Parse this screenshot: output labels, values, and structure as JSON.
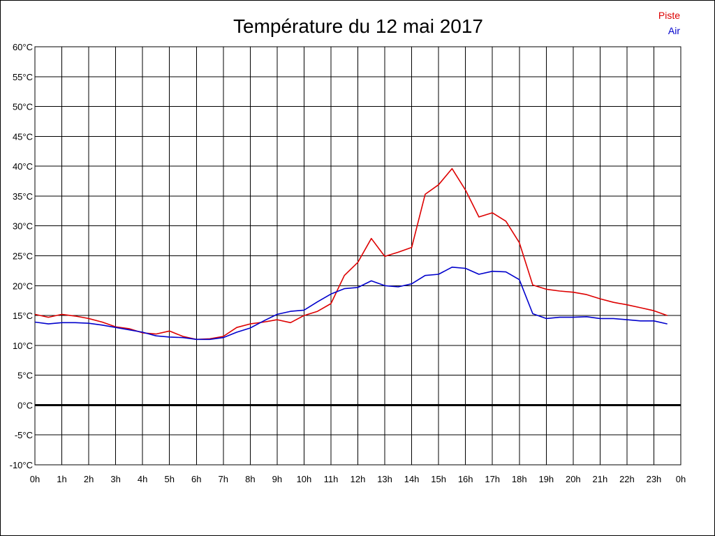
{
  "chart_data": {
    "type": "line",
    "title": "Température du 12 mai 2017",
    "xlabel": "",
    "ylabel": "",
    "x_tick_labels": [
      "0h",
      "1h",
      "2h",
      "3h",
      "4h",
      "5h",
      "6h",
      "7h",
      "8h",
      "9h",
      "10h",
      "11h",
      "12h",
      "13h",
      "14h",
      "15h",
      "16h",
      "17h",
      "18h",
      "19h",
      "20h",
      "21h",
      "22h",
      "23h",
      "0h"
    ],
    "y_tick_labels": [
      "-10°C",
      "-5°C",
      "0°C",
      "5°C",
      "10°C",
      "15°C",
      "20°C",
      "25°C",
      "30°C",
      "35°C",
      "40°C",
      "45°C",
      "50°C",
      "55°C",
      "60°C"
    ],
    "xlim": [
      0,
      24
    ],
    "ylim": [
      -10,
      60
    ],
    "y_tick_values": [
      -10,
      -5,
      0,
      5,
      10,
      15,
      20,
      25,
      30,
      35,
      40,
      45,
      50,
      55,
      60
    ],
    "grid": true,
    "zero_line": true,
    "legend_position": "top-right",
    "x": [
      0,
      0.5,
      1,
      1.5,
      2,
      2.5,
      3,
      3.5,
      4,
      4.5,
      5,
      5.5,
      6,
      6.5,
      7,
      7.5,
      8,
      8.5,
      9,
      9.5,
      10,
      10.5,
      11,
      11.5,
      12,
      12.5,
      13,
      13.5,
      14,
      14.5,
      15,
      15.5,
      16,
      16.5,
      17,
      17.5,
      18,
      18.5,
      19,
      19.5,
      20,
      20.5,
      21,
      21.5,
      22,
      22.5,
      23,
      23.5
    ],
    "series": [
      {
        "name": "Piste",
        "color": "#dd0000",
        "values": [
          15.2,
          14.7,
          15.2,
          14.9,
          14.5,
          13.9,
          13.1,
          12.8,
          12.1,
          11.9,
          12.4,
          11.5,
          11.0,
          11.1,
          11.5,
          13.0,
          13.6,
          13.9,
          14.3,
          13.8,
          15.0,
          15.7,
          17.0,
          21.7,
          23.9,
          27.9,
          24.9,
          25.6,
          26.4,
          35.3,
          36.9,
          39.6,
          36.0,
          31.5,
          32.2,
          30.8,
          27.2,
          20.1,
          19.4,
          19.1,
          18.9,
          18.5,
          17.8,
          17.2,
          16.8,
          16.3,
          15.8,
          15.0
        ]
      },
      {
        "name": "Air",
        "color": "#0000cc",
        "values": [
          13.9,
          13.6,
          13.8,
          13.8,
          13.7,
          13.4,
          13.0,
          12.6,
          12.2,
          11.6,
          11.4,
          11.3,
          11.0,
          11.0,
          11.3,
          12.2,
          12.9,
          14.1,
          15.2,
          15.7,
          15.9,
          17.3,
          18.6,
          19.5,
          19.7,
          20.8,
          20.0,
          19.8,
          20.3,
          21.7,
          21.9,
          23.1,
          22.9,
          21.9,
          22.4,
          22.3,
          21.0,
          15.3,
          14.5,
          14.7,
          14.7,
          14.8,
          14.5,
          14.5,
          14.3,
          14.1,
          14.1,
          13.6
        ]
      }
    ]
  }
}
